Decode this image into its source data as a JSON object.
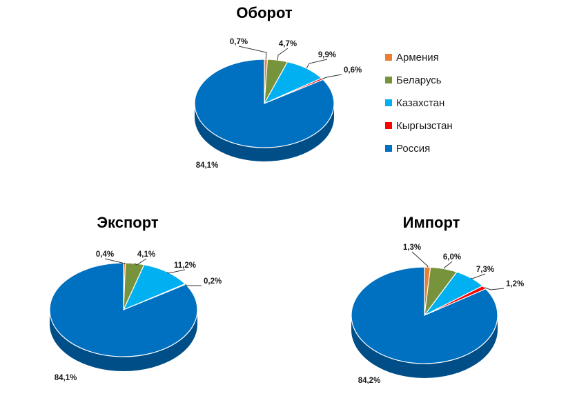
{
  "chart_data": [
    {
      "type": "pie",
      "title": "Оборот",
      "categories": [
        "Армения",
        "Беларусь",
        "Казахстан",
        "Кыргызстан",
        "Россия"
      ],
      "values": [
        0.7,
        4.7,
        9.9,
        0.6,
        84.1
      ],
      "labels": [
        "0,7%",
        "4,7%",
        "9,9%",
        "0,6%",
        "84,1%"
      ],
      "legend": "right"
    },
    {
      "type": "pie",
      "title": "Экспорт",
      "categories": [
        "Армения",
        "Беларусь",
        "Казахстан",
        "Кыргызстан",
        "Россия"
      ],
      "values": [
        0.4,
        4.1,
        11.2,
        0.2,
        84.1
      ],
      "labels": [
        "0,4%",
        "4,1%",
        "11,2%",
        "0,2%",
        "84,1%"
      ]
    },
    {
      "type": "pie",
      "title": "Импорт",
      "categories": [
        "Армения",
        "Беларусь",
        "Казахстан",
        "Кыргызстан",
        "Россия"
      ],
      "values": [
        1.3,
        6.0,
        7.3,
        1.2,
        84.2
      ],
      "labels": [
        "1,3%",
        "6,0%",
        "7,3%",
        "1,2%",
        "84,2%"
      ]
    }
  ],
  "legend": {
    "items": [
      "Армения",
      "Беларусь",
      "Казахстан",
      "Кыргызстан",
      "Россия"
    ]
  },
  "colors": [
    "#ED7D31",
    "#77933C",
    "#00B0F0",
    "#FF0000",
    "#0070C0"
  ],
  "side_colors": [
    "#B85A1C",
    "#546A27",
    "#0083B4",
    "#B80000",
    "#004E88"
  ]
}
